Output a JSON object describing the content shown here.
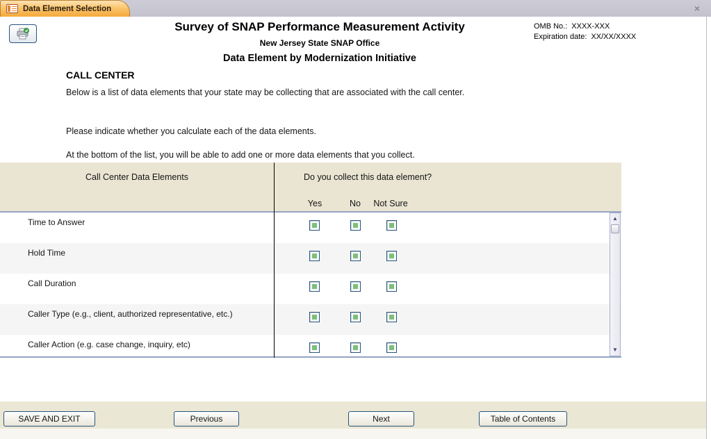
{
  "tab": {
    "label": "Data Element Selection"
  },
  "window": {
    "close_glyph": "×"
  },
  "header": {
    "title": "Survey of SNAP Performance Measurement Activity",
    "subtitle": "New Jersey State SNAP Office",
    "form_name": "Data Element by Modernization Initiative",
    "omb_label": "OMB No.:",
    "omb_value": "XXXX-XXX",
    "exp_label": "Expiration date:",
    "exp_value": "XX/XX/XXXX"
  },
  "section": {
    "heading": "CALL CENTER",
    "paragraphs": [
      "Below is a list of data elements that your state may be collecting that are associated with the call center.",
      "Please indicate whether you calculate each of the data elements.",
      "At the bottom of the list, you will be able to add one or more data elements that you collect."
    ]
  },
  "table": {
    "col1_header": "Call Center Data Elements",
    "col2_header": "Do you collect this data element?",
    "options": [
      "Yes",
      "No",
      "Not Sure"
    ],
    "rows": [
      {
        "label": "Time to Answer"
      },
      {
        "label": "Hold Time"
      },
      {
        "label": "Call Duration"
      },
      {
        "label": "Caller Type (e.g., client, authorized representative, etc.)"
      },
      {
        "label": "Caller Action (e.g. case change, inquiry, etc)"
      }
    ]
  },
  "footer": {
    "buttons": [
      "SAVE AND EXIT",
      "Previous",
      "Next",
      "Table of Contents"
    ]
  },
  "colors": {
    "tab_orange": "#f4a83c",
    "band_tan": "#e9e5d2",
    "row_alt": "#f5f5f5",
    "button_border": "#27537a",
    "checkbox_green": "#7cbf7a",
    "divider_black": "#000000"
  }
}
